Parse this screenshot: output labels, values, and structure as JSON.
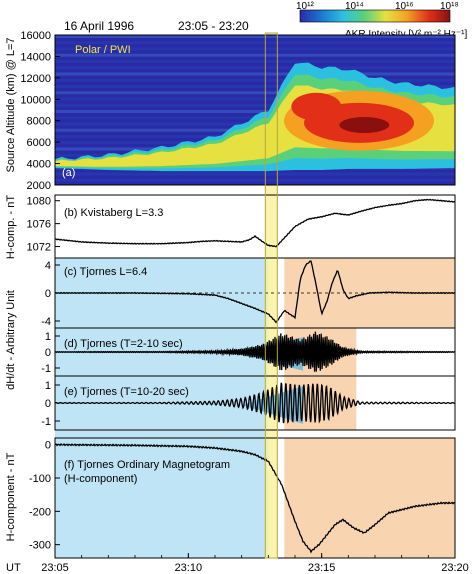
{
  "header": {
    "date": "16 April 1996",
    "time_range": "23:05 - 23:20"
  },
  "colorbar": {
    "title": "AKR Intensity [V² m⁻² Hz⁻¹]",
    "tick_labels": [
      "10¹²",
      "10¹⁴",
      "10¹⁶",
      "10¹⁸"
    ],
    "colors": [
      "#2a2aa8",
      "#1a78d0",
      "#2cc0e0",
      "#5ad07a",
      "#e6e040",
      "#f5a020",
      "#e23018",
      "#8a1010"
    ]
  },
  "x_axis": {
    "label": "UT",
    "ticks": [
      "23:05",
      "23:10",
      "23:15",
      "23:20"
    ]
  },
  "shading": {
    "blue_region": "#bfe4f5",
    "orange_region": "#f8d4b0",
    "onset_band": "#f9f2a0",
    "wedge": "#5fb8e6"
  },
  "chart_data": [
    {
      "type": "heatmap",
      "panel": "a",
      "label": "(a)",
      "annotation": "Polar / PWI",
      "ylabel": "Source Altitude (km) @ L=7",
      "ylim": [
        2000,
        16000
      ],
      "y_ticks": [
        2000,
        4000,
        6000,
        8000,
        10000,
        12000,
        14000,
        16000
      ],
      "x": [
        "23:05",
        "23:07",
        "23:09",
        "23:11",
        "23:13",
        "23:14",
        "23:15",
        "23:16",
        "23:17",
        "23:18",
        "23:20"
      ],
      "emission_top_km": [
        4400,
        4800,
        5500,
        6500,
        9000,
        13500,
        13000,
        12800,
        12000,
        11500,
        11000
      ],
      "emission_bottom_km": [
        3600,
        3400,
        3300,
        3300,
        3300,
        3400,
        3400,
        3500,
        3500,
        3500,
        3600
      ]
    },
    {
      "type": "line",
      "panel": "b",
      "label": "(b) Kvistaberg  L=3.3",
      "ylabel": "H-comp. - nT",
      "ylim": [
        1070,
        1081
      ],
      "y_ticks": [
        1072,
        1076,
        1080
      ],
      "series": [
        {
          "x": [
            5,
            6,
            7,
            8,
            9,
            10,
            10.5,
            11,
            11.5,
            12,
            12.3,
            12.5,
            12.8,
            13,
            13.3,
            13.6,
            14,
            14.5,
            15,
            15.5,
            16,
            16.5,
            17,
            17.5,
            18,
            18.5,
            19,
            19.5,
            20
          ],
          "y": [
            1073.3,
            1072.8,
            1072.6,
            1072.5,
            1072.5,
            1072.7,
            1072.9,
            1073.0,
            1072.9,
            1072.8,
            1073.2,
            1073.8,
            1072.8,
            1072.2,
            1072.0,
            1073.5,
            1075.5,
            1076.8,
            1077.2,
            1077.8,
            1077.5,
            1078.2,
            1078.8,
            1079.2,
            1079.5,
            1080.0,
            1080.2,
            1080.0,
            1079.8
          ]
        }
      ]
    },
    {
      "type": "line",
      "panel": "c",
      "label": "(c) Tjornes  L=6.4",
      "ylim": [
        -5,
        5
      ],
      "y_ticks": [
        -4,
        0,
        4
      ],
      "series": [
        {
          "x": [
            5,
            8,
            10,
            11,
            11.5,
            12,
            12.5,
            13,
            13.3,
            13.6,
            14,
            14.2,
            14.4,
            14.6,
            14.8,
            15,
            15.2,
            15.4,
            15.6,
            15.8,
            16,
            16.3,
            16.8,
            17.5,
            18.5,
            20
          ],
          "y": [
            0,
            0,
            -0.1,
            -0.3,
            -0.8,
            -1.5,
            -2.2,
            -3.0,
            -4.2,
            -2.5,
            -3.5,
            2.0,
            4.0,
            4.6,
            1.0,
            -3.0,
            -1.2,
            1.5,
            3.3,
            0.5,
            -0.8,
            -0.4,
            0,
            0.1,
            0,
            0
          ]
        }
      ]
    },
    {
      "type": "line",
      "panel": "d",
      "label": "(d) Tjornes  (T=2-10 sec)",
      "ylim": [
        -1.5,
        1.5
      ],
      "y_ticks": [
        -1,
        0,
        1
      ],
      "series": [
        {
          "x": [
            5,
            9,
            11,
            12,
            12.8,
            13.5,
            14.2,
            14.8,
            15.3,
            15.8,
            16.5,
            20
          ],
          "y": [
            0.02,
            0.03,
            0.08,
            0.2,
            0.5,
            1.2,
            0.8,
            1.3,
            0.9,
            0.3,
            0.05,
            0.02
          ]
        }
      ]
    },
    {
      "type": "line",
      "panel": "e",
      "label": "(e) Tjornes  (T=10-20 sec)",
      "ylim": [
        -1.5,
        1.5
      ],
      "y_ticks": [
        -1,
        0,
        1
      ],
      "series": [
        {
          "x": [
            5,
            9,
            11,
            12,
            12.8,
            13.5,
            14.2,
            14.8,
            15.3,
            15.8,
            16.5,
            20
          ],
          "y": [
            0.02,
            0.03,
            0.1,
            0.25,
            0.6,
            1.15,
            1.0,
            1.1,
            0.9,
            0.35,
            0.05,
            0.02
          ]
        }
      ]
    },
    {
      "type": "line",
      "panel": "f",
      "label": "(f) Tjornes  Ordinary Magnetogram",
      "label2": "(H-component)",
      "ylabel": "H-component - nT",
      "ylim": [
        -340,
        20
      ],
      "y_ticks": [
        0,
        -100,
        -200,
        -300
      ],
      "series": [
        {
          "x": [
            5,
            8,
            10,
            11,
            12,
            12.5,
            13,
            13.5,
            14,
            14.3,
            14.6,
            14.9,
            15.2,
            15.5,
            15.8,
            16.2,
            16.6,
            17,
            17.5,
            18,
            18.5,
            19,
            19.5,
            20
          ],
          "y": [
            0,
            -2,
            -5,
            -10,
            -20,
            -30,
            -50,
            -120,
            -230,
            -290,
            -320,
            -300,
            -270,
            -240,
            -225,
            -250,
            -265,
            -240,
            -205,
            -195,
            -185,
            -180,
            -175,
            -175
          ]
        }
      ]
    }
  ],
  "shared_ylabel": "dH/dt - Arbitrary Unit",
  "onset_time": "23:13"
}
